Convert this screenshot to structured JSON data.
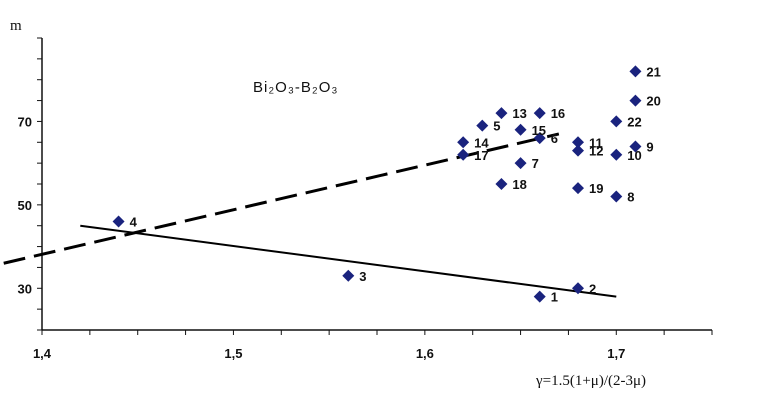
{
  "chart_data": {
    "type": "scatter",
    "title": "",
    "xlabel": "γ=1.5(1+μ)/(2-3μ)",
    "ylabel": "m",
    "annotation": "Bi₂O₃-B₂O₃",
    "xlim": [
      1.4,
      1.75
    ],
    "ylim": [
      20,
      90
    ],
    "x_ticks": [
      1.4,
      1.5,
      1.6,
      1.7
    ],
    "x_tick_labels": [
      "1,4",
      "1,5",
      "1,6",
      "1,7"
    ],
    "y_ticks": [
      30,
      50,
      70
    ],
    "y_tick_labels": [
      "30",
      "50",
      "70"
    ],
    "grid": false,
    "marker_color": "#1a237e",
    "points": [
      {
        "label": "1",
        "x": 1.66,
        "y": 28
      },
      {
        "label": "2",
        "x": 1.68,
        "y": 30
      },
      {
        "label": "3",
        "x": 1.56,
        "y": 33
      },
      {
        "label": "4",
        "x": 1.44,
        "y": 46
      },
      {
        "label": "5",
        "x": 1.63,
        "y": 69
      },
      {
        "label": "6",
        "x": 1.66,
        "y": 66
      },
      {
        "label": "7",
        "x": 1.65,
        "y": 60
      },
      {
        "label": "8",
        "x": 1.7,
        "y": 52
      },
      {
        "label": "9",
        "x": 1.71,
        "y": 64
      },
      {
        "label": "10",
        "x": 1.7,
        "y": 62
      },
      {
        "label": "11",
        "x": 1.68,
        "y": 65
      },
      {
        "label": "12",
        "x": 1.68,
        "y": 63
      },
      {
        "label": "13",
        "x": 1.64,
        "y": 72
      },
      {
        "label": "14",
        "x": 1.62,
        "y": 65
      },
      {
        "label": "15",
        "x": 1.65,
        "y": 68
      },
      {
        "label": "16",
        "x": 1.66,
        "y": 72
      },
      {
        "label": "17",
        "x": 1.62,
        "y": 62
      },
      {
        "label": "18",
        "x": 1.64,
        "y": 55
      },
      {
        "label": "19",
        "x": 1.68,
        "y": 54
      },
      {
        "label": "20",
        "x": 1.71,
        "y": 75
      },
      {
        "label": "21",
        "x": 1.71,
        "y": 82
      },
      {
        "label": "22",
        "x": 1.7,
        "y": 70
      }
    ],
    "lines": [
      {
        "style": "dashed",
        "x": [
          1.38,
          1.67
        ],
        "y": [
          36,
          67
        ]
      },
      {
        "style": "solid",
        "x": [
          1.42,
          1.7
        ],
        "y": [
          45,
          28
        ]
      }
    ]
  }
}
